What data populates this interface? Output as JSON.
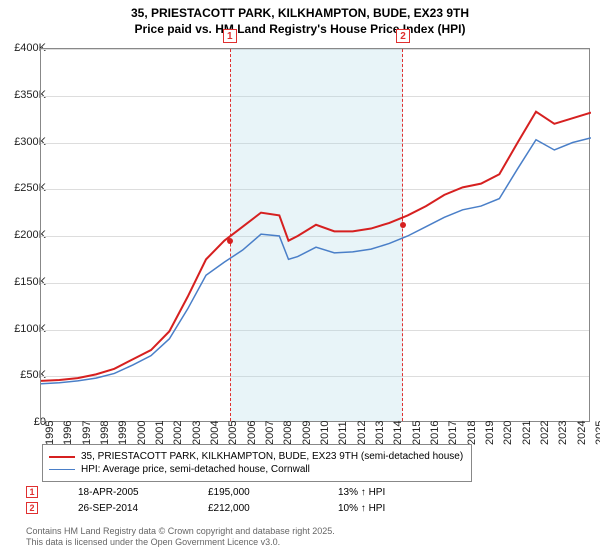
{
  "title_line1": "35, PRIESTACOTT PARK, KILKHAMPTON, BUDE, EX23 9TH",
  "title_line2": "Price paid vs. HM Land Registry's House Price Index (HPI)",
  "chart": {
    "type": "line",
    "ylim": [
      0,
      400000
    ],
    "ytick_step": 50000,
    "ytick_labels": [
      "£0",
      "£50K",
      "£100K",
      "£150K",
      "£200K",
      "£250K",
      "£300K",
      "£350K",
      "£400K"
    ],
    "x_years": [
      1995,
      1996,
      1997,
      1998,
      1999,
      2000,
      2001,
      2002,
      2003,
      2004,
      2005,
      2006,
      2007,
      2008,
      2009,
      2010,
      2011,
      2012,
      2013,
      2014,
      2015,
      2016,
      2017,
      2018,
      2019,
      2020,
      2021,
      2022,
      2023,
      2024,
      2025
    ],
    "shade_start": 2005.3,
    "shade_end": 2014.75,
    "background_color": "#ffffff",
    "grid_color": "#dddddd",
    "series": [
      {
        "name": "35, PRIESTACOTT PARK, KILKHAMPTON, BUDE, EX23 9TH (semi-detached house)",
        "color": "#d62020",
        "line_width": 2,
        "data": [
          [
            1995,
            45000
          ],
          [
            1996,
            46000
          ],
          [
            1997,
            48000
          ],
          [
            1998,
            52000
          ],
          [
            1999,
            58000
          ],
          [
            2000,
            68000
          ],
          [
            2001,
            78000
          ],
          [
            2002,
            98000
          ],
          [
            2003,
            135000
          ],
          [
            2004,
            175000
          ],
          [
            2005,
            195000
          ],
          [
            2006,
            210000
          ],
          [
            2007,
            225000
          ],
          [
            2008,
            222000
          ],
          [
            2008.5,
            195000
          ],
          [
            2009,
            200000
          ],
          [
            2010,
            212000
          ],
          [
            2011,
            205000
          ],
          [
            2012,
            205000
          ],
          [
            2013,
            208000
          ],
          [
            2014,
            214000
          ],
          [
            2015,
            222000
          ],
          [
            2016,
            232000
          ],
          [
            2017,
            244000
          ],
          [
            2018,
            252000
          ],
          [
            2019,
            256000
          ],
          [
            2020,
            266000
          ],
          [
            2021,
            300000
          ],
          [
            2022,
            333000
          ],
          [
            2023,
            320000
          ],
          [
            2024,
            326000
          ],
          [
            2025,
            332000
          ]
        ]
      },
      {
        "name": "HPI: Average price, semi-detached house, Cornwall",
        "color": "#4a7fc8",
        "line_width": 1.5,
        "data": [
          [
            1995,
            42000
          ],
          [
            1996,
            43000
          ],
          [
            1997,
            45000
          ],
          [
            1998,
            48000
          ],
          [
            1999,
            53000
          ],
          [
            2000,
            62000
          ],
          [
            2001,
            72000
          ],
          [
            2002,
            90000
          ],
          [
            2003,
            122000
          ],
          [
            2004,
            158000
          ],
          [
            2005,
            172000
          ],
          [
            2006,
            185000
          ],
          [
            2007,
            202000
          ],
          [
            2008,
            200000
          ],
          [
            2008.5,
            175000
          ],
          [
            2009,
            178000
          ],
          [
            2010,
            188000
          ],
          [
            2011,
            182000
          ],
          [
            2012,
            183000
          ],
          [
            2013,
            186000
          ],
          [
            2014,
            192000
          ],
          [
            2015,
            200000
          ],
          [
            2016,
            210000
          ],
          [
            2017,
            220000
          ],
          [
            2018,
            228000
          ],
          [
            2019,
            232000
          ],
          [
            2020,
            240000
          ],
          [
            2021,
            272000
          ],
          [
            2022,
            303000
          ],
          [
            2023,
            292000
          ],
          [
            2024,
            300000
          ],
          [
            2025,
            305000
          ]
        ]
      }
    ],
    "markers": [
      {
        "idx": "1",
        "x": 2005.3,
        "y": 195000,
        "color": "#d62020"
      },
      {
        "idx": "2",
        "x": 2014.75,
        "y": 212000,
        "color": "#d62020"
      }
    ]
  },
  "legend": {
    "rows": [
      {
        "color": "#d62020",
        "width": 2,
        "label": "35, PRIESTACOTT PARK, KILKHAMPTON, BUDE, EX23 9TH (semi-detached house)"
      },
      {
        "color": "#4a7fc8",
        "width": 1.5,
        "label": "HPI: Average price, semi-detached house, Cornwall"
      }
    ]
  },
  "transactions": [
    {
      "idx": "1",
      "date": "18-APR-2005",
      "price": "£195,000",
      "delta": "13% ↑ HPI"
    },
    {
      "idx": "2",
      "date": "26-SEP-2014",
      "price": "£212,000",
      "delta": "10% ↑ HPI"
    }
  ],
  "footer_line1": "Contains HM Land Registry data © Crown copyright and database right 2025.",
  "footer_line2": "This data is licensed under the Open Government Licence v3.0."
}
